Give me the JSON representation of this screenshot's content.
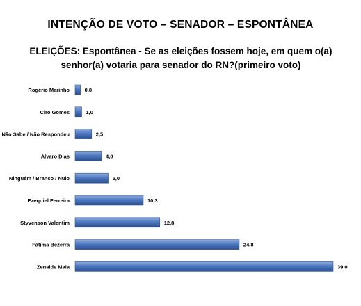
{
  "header": {
    "title": "INTENÇÃO DE VOTO – SENADOR – ESPONTÂNEA",
    "subtitle": "ELEIÇÕES: Espontânea - Se as eleições fossem hoje, em quem o(a) senhor(a) votaria para senador do RN?(primeiro voto)"
  },
  "chart_data": {
    "type": "bar",
    "orientation": "horizontal",
    "title": "ELEIÇÕES: Espontânea - Se as eleições fossem hoje, em quem o(a) senhor(a) votaria para senador do RN?(primeiro voto)",
    "categories": [
      "Rogério Marinho",
      "Ciro Gomes",
      "Não Sabe / Não Respondeu",
      "Álvaro Dias",
      "Ninguém / Branco / Nulo",
      "Ezequiel Ferreira",
      "Styvenson Valentim",
      "Fátima Bezerra",
      "Zenaide Maia"
    ],
    "values": [
      0.8,
      1.0,
      2.5,
      4.0,
      5.0,
      10.3,
      12.8,
      24.8,
      39.0
    ],
    "labels": [
      "0,8",
      "1,0",
      "2,5",
      "4,0",
      "5,0",
      "10,3",
      "12,8",
      "24,8",
      "39,0"
    ],
    "xlim": [
      0,
      39.0
    ],
    "grid": false,
    "legend": "none",
    "colors": {
      "bar_top": "#8eaadc",
      "bar_mid": "#4f79c2",
      "bar_bottom": "#2c4f8c",
      "bar_edge": "#2f5597"
    }
  }
}
